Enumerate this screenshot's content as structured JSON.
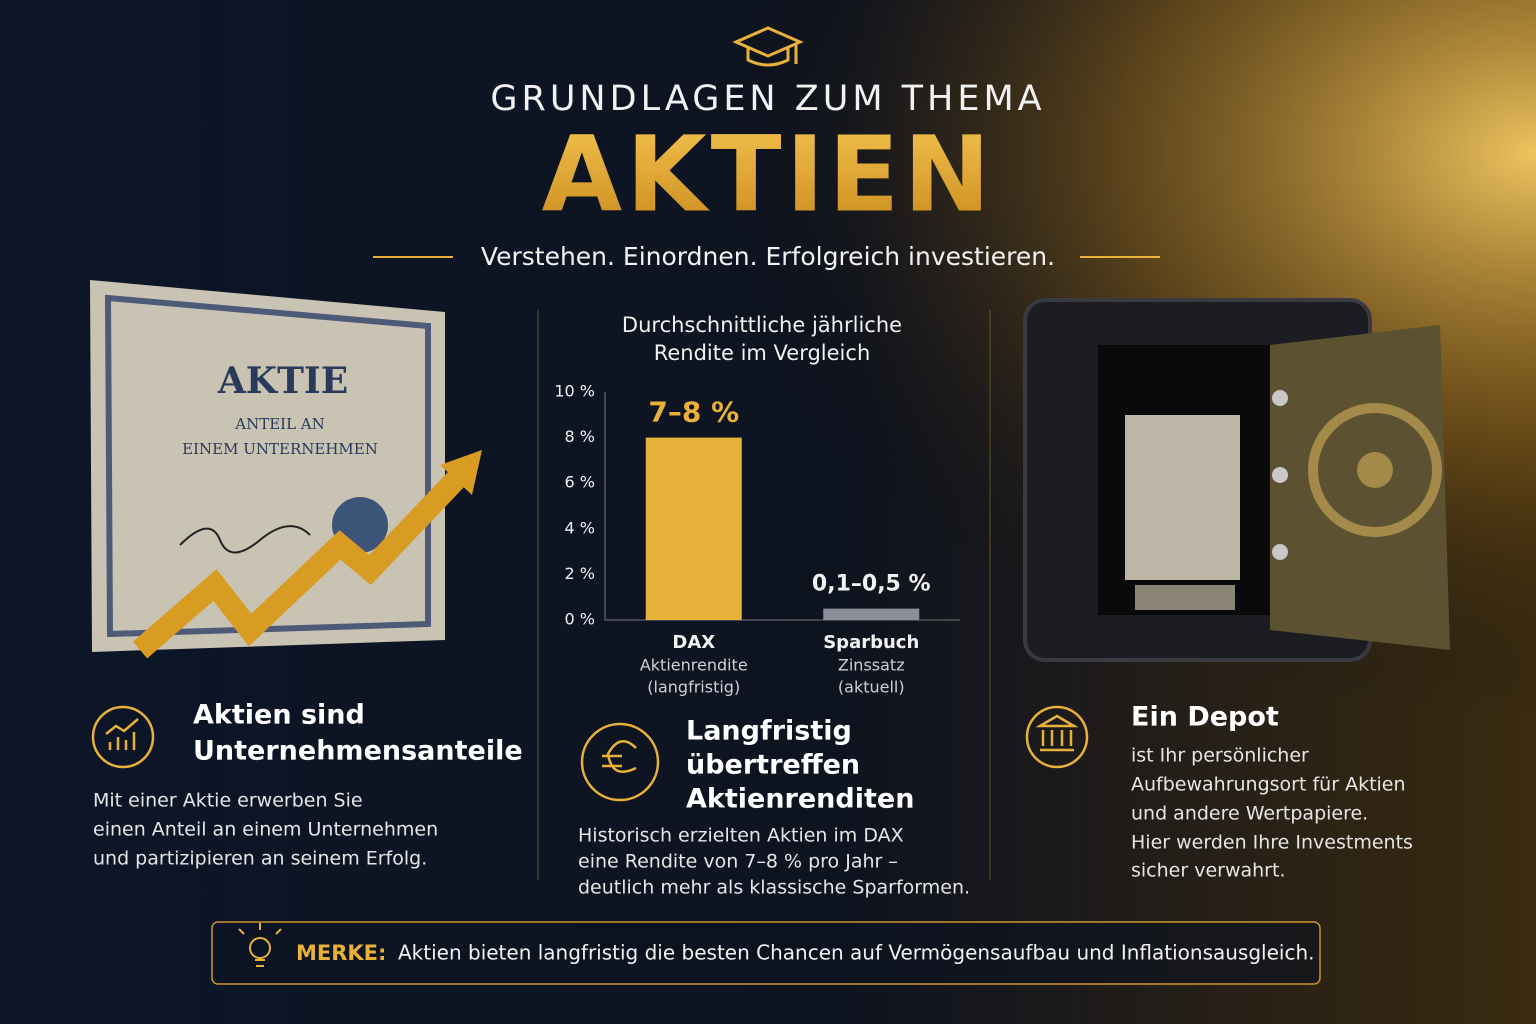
{
  "header": {
    "title_top": "GRUNDLAGEN ZUM THEMA",
    "title": "AKTIEN",
    "tagline": "Verstehen. Einordnen. Erfolgreich investieren."
  },
  "certificate": {
    "title": "AKTIE",
    "lines": [
      "ANTEIL AN",
      "EINEM UNTERNEHMEN"
    ]
  },
  "sections": [
    {
      "heading": [
        "Aktien sind",
        "Unternehmensanteile"
      ],
      "text": [
        "Mit einer Aktie erwerben Sie",
        "einen Anteil an einem Unternehmen",
        "und partizipieren an seinem Erfolg."
      ]
    },
    {
      "heading": [
        "Langfristig",
        "übertreffen",
        "Aktienrenditen"
      ],
      "text": [
        "Historisch erzielten Aktien im DAX",
        "eine Rendite von 7–8 % pro Jahr –",
        "deutlich mehr als klassische Sparformen."
      ]
    },
    {
      "heading": [
        "Ein Depot"
      ],
      "text": [
        "ist Ihr persönlicher",
        "Aufbewahrungsort für Aktien",
        "und andere Wertpapiere.",
        "Hier werden Ihre Investments",
        "sicher verwahrt."
      ]
    }
  ],
  "chart_data": {
    "type": "bar",
    "title": [
      "Durchschnittliche jährliche",
      "Rendite im Vergleich"
    ],
    "categories": [
      "DAX",
      "Sparbuch"
    ],
    "category_notes": [
      [
        "Aktienrendite",
        "(langfristig)"
      ],
      [
        "Zinssatz",
        "(aktuell)"
      ]
    ],
    "values": [
      8,
      0.5
    ],
    "value_labels": [
      "7–8 %",
      "0,1–0,5 %"
    ],
    "colors": [
      "#e8b13a",
      "#8a8f99"
    ],
    "ylim": [
      0,
      10
    ],
    "yticks": [
      {
        "value": 0,
        "label": "0 %"
      },
      {
        "value": 2,
        "label": "2 %"
      },
      {
        "value": 4,
        "label": "4 %"
      },
      {
        "value": 6,
        "label": "6 %"
      },
      {
        "value": 8,
        "label": "8 %"
      },
      {
        "value": 10,
        "label": "10 %"
      }
    ],
    "grid": false
  },
  "note": {
    "label": "MERKE:",
    "text": "Aktien bieten langfristig die besten Chancen auf Vermögensaufbau und Inflationsausgleich."
  }
}
